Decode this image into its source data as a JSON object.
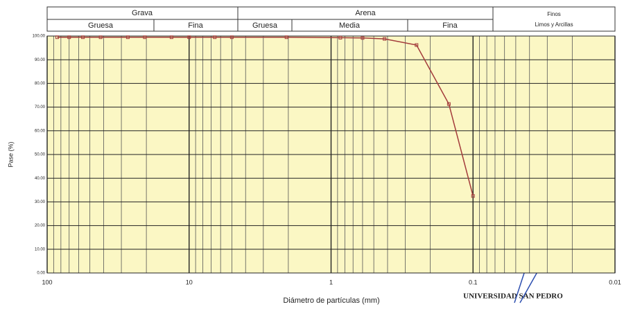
{
  "classification": {
    "grava": "Grava",
    "arena": "Arena",
    "finos": "Finos",
    "finos_sub": "Limos y Arcillas",
    "grava_gruesa": "Gruesa",
    "grava_fina": "Fina",
    "arena_gruesa": "Gruesa",
    "arena_media": "Media",
    "arena_fina": "Fina"
  },
  "stamp": "UNIVERSIDAD SAN PEDRO",
  "chart_data": {
    "type": "line",
    "xlabel": "Diámetro de partículas (mm)",
    "ylabel": "Pase (%)",
    "log_x": true,
    "x_reversed": true,
    "grid": true,
    "color": "#a33b3b",
    "background": "#fbf7c4",
    "series": [
      {
        "name": null,
        "color": "#a33b3b",
        "x": [
          85,
          70,
          56,
          42,
          27,
          20.5,
          13.3,
          10,
          6.6,
          5,
          2.06,
          0.86,
          0.6,
          0.42,
          0.25,
          0.148,
          0.1
        ],
        "values": [
          99.5,
          99.5,
          99.5,
          99.5,
          99.5,
          99.5,
          99.5,
          99.5,
          99.5,
          99.5,
          99.5,
          99.3,
          99.2,
          98.8,
          96.2,
          71.3,
          32.5
        ]
      }
    ],
    "xlim": [
      100,
      0.01
    ],
    "xticks": [
      100,
      10,
      1,
      0.1,
      0.01
    ],
    "ylim": [
      0,
      100
    ],
    "yticks": [
      {
        "value": 0,
        "label": "0.00"
      },
      {
        "value": 10,
        "label": "10.00"
      },
      {
        "value": 20,
        "label": "20.00"
      },
      {
        "value": 30,
        "label": "30.00"
      },
      {
        "value": 40,
        "label": "40.00"
      },
      {
        "value": 50,
        "label": "50.00"
      },
      {
        "value": 60,
        "label": "60.00"
      },
      {
        "value": 70,
        "label": "70.00"
      },
      {
        "value": 80,
        "label": "80.00"
      },
      {
        "value": 90,
        "label": "90.00"
      },
      {
        "value": 100,
        "label": "100.00"
      }
    ]
  }
}
